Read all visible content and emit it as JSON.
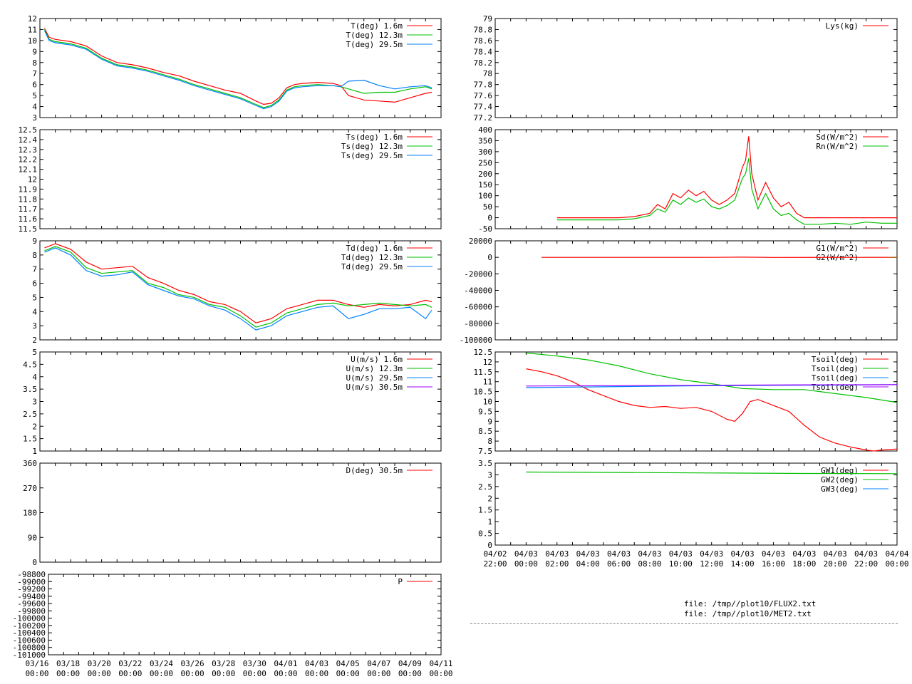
{
  "footer": {
    "line1": "file: /tmp//plot10/FLUX2.txt",
    "line2": "file: /tmp//plot10/MET2.txt"
  },
  "colors": {
    "red": "#ff0000",
    "green": "#00c000",
    "blue": "#0080ff",
    "purple": "#a000ff",
    "brown": "#a06000"
  },
  "chart_data": [
    {
      "id": "T",
      "type": "line",
      "xlim": [
        "03/16 00:00",
        "04/11 00:00"
      ],
      "ylim": [
        3,
        12
      ],
      "yticks": [
        "3",
        "4",
        "5",
        "6",
        "7",
        "8",
        "9",
        "10",
        "11",
        "12"
      ],
      "series": [
        {
          "name": "T(deg)  1.6m",
          "color": "red",
          "x": [
            0.3,
            0.6,
            1,
            2,
            3,
            4,
            5,
            6,
            7,
            8,
            9,
            10,
            11,
            12,
            13,
            14,
            14.5,
            15,
            15.5,
            16,
            16.5,
            17,
            18,
            19,
            19.5,
            20,
            21,
            22,
            23,
            24,
            25,
            25.4
          ],
          "y": [
            11.1,
            10.3,
            10.1,
            9.9,
            9.5,
            8.6,
            8.0,
            7.8,
            7.5,
            7.1,
            6.8,
            6.3,
            5.9,
            5.5,
            5.2,
            4.5,
            4.2,
            4.3,
            4.8,
            5.7,
            6.0,
            6.1,
            6.2,
            6.1,
            5.9,
            5.0,
            4.6,
            4.5,
            4.4,
            4.8,
            5.2,
            5.3
          ]
        },
        {
          "name": "T(deg) 12.3m",
          "color": "green",
          "x": [
            0.3,
            0.6,
            1,
            2,
            3,
            4,
            5,
            6,
            7,
            8,
            9,
            10,
            11,
            12,
            13,
            14,
            14.5,
            15,
            15.5,
            16,
            16.5,
            17,
            18,
            19,
            19.5,
            20,
            21,
            22,
            23,
            24,
            25,
            25.4
          ],
          "y": [
            11.0,
            10.1,
            9.9,
            9.7,
            9.3,
            8.4,
            7.8,
            7.6,
            7.3,
            6.9,
            6.5,
            6.0,
            5.6,
            5.2,
            4.8,
            4.2,
            3.9,
            4.1,
            4.6,
            5.5,
            5.8,
            5.9,
            6.0,
            5.9,
            5.8,
            5.6,
            5.2,
            5.3,
            5.3,
            5.6,
            5.8,
            5.6
          ]
        },
        {
          "name": "T(deg) 29.5m",
          "color": "blue",
          "x": [
            0.3,
            0.6,
            1,
            2,
            3,
            4,
            5,
            6,
            7,
            8,
            9,
            10,
            11,
            12,
            13,
            14,
            14.5,
            15,
            15.5,
            16,
            16.5,
            17,
            18,
            19,
            19.5,
            20,
            21,
            22,
            23,
            24,
            25,
            25.4
          ],
          "y": [
            10.9,
            10.0,
            9.8,
            9.6,
            9.2,
            8.3,
            7.7,
            7.5,
            7.2,
            6.8,
            6.4,
            5.9,
            5.5,
            5.1,
            4.7,
            4.1,
            3.8,
            4.0,
            4.5,
            5.4,
            5.7,
            5.8,
            5.9,
            5.9,
            5.8,
            6.3,
            6.4,
            5.9,
            5.6,
            5.8,
            5.9,
            5.7
          ]
        }
      ]
    },
    {
      "id": "Ts",
      "type": "line",
      "xlim": [
        "03/16 00:00",
        "04/11 00:00"
      ],
      "ylim": [
        11.5,
        12.5
      ],
      "yticks": [
        "11.5",
        "11.6",
        "11.7",
        "11.8",
        "11.9",
        "12",
        "12.1",
        "12.2",
        "12.3",
        "12.4",
        "12.5"
      ],
      "series": [
        {
          "name": "Ts(deg)  1.6m",
          "color": "red",
          "x": [],
          "y": []
        },
        {
          "name": "Ts(deg) 12.3m",
          "color": "green",
          "x": [],
          "y": []
        },
        {
          "name": "Ts(deg) 29.5m",
          "color": "blue",
          "x": [],
          "y": []
        }
      ]
    },
    {
      "id": "Td",
      "type": "line",
      "xlim": [
        "03/16 00:00",
        "04/11 00:00"
      ],
      "ylim": [
        2,
        9
      ],
      "yticks": [
        "2",
        "3",
        "4",
        "5",
        "6",
        "7",
        "8",
        "9"
      ],
      "series": [
        {
          "name": "Td(deg)  1.6m",
          "color": "red",
          "x": [
            0.3,
            1,
            2,
            3,
            4,
            5,
            6,
            7,
            8,
            9,
            10,
            11,
            12,
            13,
            14,
            15,
            16,
            17,
            18,
            19,
            20,
            21,
            22,
            23,
            24,
            25,
            25.4
          ],
          "y": [
            8.5,
            8.8,
            8.4,
            7.5,
            7.0,
            7.1,
            7.2,
            6.4,
            6.0,
            5.5,
            5.2,
            4.7,
            4.5,
            4.0,
            3.2,
            3.5,
            4.2,
            4.5,
            4.8,
            4.8,
            4.5,
            4.3,
            4.5,
            4.4,
            4.5,
            4.8,
            4.7
          ]
        },
        {
          "name": "Td(deg) 12.3m",
          "color": "green",
          "x": [
            0.3,
            1,
            2,
            3,
            4,
            5,
            6,
            7,
            8,
            9,
            10,
            11,
            12,
            13,
            14,
            15,
            16,
            17,
            18,
            19,
            20,
            21,
            22,
            23,
            24,
            25,
            25.4
          ],
          "y": [
            8.3,
            8.6,
            8.2,
            7.1,
            6.7,
            6.8,
            6.9,
            6.0,
            5.7,
            5.2,
            5.0,
            4.5,
            4.3,
            3.7,
            2.9,
            3.2,
            3.9,
            4.2,
            4.5,
            4.6,
            4.4,
            4.5,
            4.6,
            4.5,
            4.4,
            4.5,
            4.3
          ]
        },
        {
          "name": "Td(deg) 29.5m",
          "color": "blue",
          "x": [
            0.3,
            1,
            2,
            3,
            4,
            5,
            6,
            7,
            8,
            9,
            10,
            11,
            12,
            13,
            14,
            15,
            16,
            17,
            18,
            19,
            20,
            21,
            22,
            23,
            24,
            25,
            25.4
          ],
          "y": [
            8.2,
            8.5,
            8.0,
            6.9,
            6.5,
            6.6,
            6.8,
            5.9,
            5.5,
            5.1,
            4.9,
            4.4,
            4.1,
            3.5,
            2.7,
            3.0,
            3.7,
            4.0,
            4.3,
            4.4,
            3.5,
            3.8,
            4.2,
            4.2,
            4.3,
            3.5,
            4.1
          ]
        }
      ]
    },
    {
      "id": "U",
      "type": "line",
      "xlim": [
        "03/16 00:00",
        "04/11 00:00"
      ],
      "ylim": [
        1,
        5
      ],
      "yticks": [
        "1",
        "1.5",
        "2",
        "2.5",
        "3",
        "3.5",
        "4",
        "4.5",
        "5"
      ],
      "series": [
        {
          "name": "U(m/s)  1.6m",
          "color": "red",
          "x": [],
          "y": []
        },
        {
          "name": "U(m/s) 12.3m",
          "color": "green",
          "x": [],
          "y": []
        },
        {
          "name": "U(m/s) 29.5m",
          "color": "blue",
          "x": [],
          "y": []
        },
        {
          "name": "U(m/s) 30.5m",
          "color": "purple",
          "x": [],
          "y": []
        }
      ]
    },
    {
      "id": "D",
      "type": "line",
      "xlim": [
        "03/16 00:00",
        "04/11 00:00"
      ],
      "ylim": [
        0,
        360
      ],
      "yticks": [
        "0",
        "90",
        "180",
        "270",
        "360"
      ],
      "series": [
        {
          "name": "D(deg)  30.5m",
          "color": "red",
          "x": [],
          "y": []
        }
      ]
    },
    {
      "id": "P",
      "type": "line",
      "xlim": [
        "03/16 00:00",
        "04/11 00:00"
      ],
      "ylim": [
        -101000,
        -98800
      ],
      "yticks": [
        "-101000",
        "-100800",
        "-100600",
        "-100400",
        "-100200",
        "-100000",
        "-99800",
        "-99600",
        "-99400",
        "-99200",
        "-99000",
        "-98800"
      ],
      "xticks": [
        [
          "03/16",
          "00:00"
        ],
        [
          "03/18",
          "00:00"
        ],
        [
          "03/20",
          "00:00"
        ],
        [
          "03/22",
          "00:00"
        ],
        [
          "03/24",
          "00:00"
        ],
        [
          "03/26",
          "00:00"
        ],
        [
          "03/28",
          "00:00"
        ],
        [
          "03/30",
          "00:00"
        ],
        [
          "04/01",
          "00:00"
        ],
        [
          "04/03",
          "00:00"
        ],
        [
          "04/05",
          "00:00"
        ],
        [
          "04/07",
          "00:00"
        ],
        [
          "04/09",
          "00:00"
        ],
        [
          "04/11",
          "00:00"
        ]
      ],
      "series": [
        {
          "name": "P",
          "color": "red",
          "x": [],
          "y": []
        }
      ]
    },
    {
      "id": "Lys",
      "type": "line",
      "xlim": [
        "04/02 22:00",
        "04/04 00:00"
      ],
      "ylim": [
        77.2,
        79
      ],
      "yticks": [
        "77.2",
        "77.4",
        "77.6",
        "77.8",
        "78",
        "78.2",
        "78.4",
        "78.6",
        "78.8",
        "79"
      ],
      "series": [
        {
          "name": "Lys(kg)",
          "color": "red",
          "x": [],
          "y": []
        }
      ]
    },
    {
      "id": "Rad",
      "type": "line",
      "xlim": [
        "04/02 22:00",
        "04/04 00:00"
      ],
      "ylim": [
        -50,
        400
      ],
      "yticks": [
        "-50",
        "0",
        "50",
        "100",
        "150",
        "200",
        "250",
        "300",
        "350",
        "400"
      ],
      "series": [
        {
          "name": "Sd(W/m^2)",
          "color": "red",
          "x": [
            2,
            4,
            6,
            7,
            8,
            8.5,
            9,
            9.5,
            10,
            10.5,
            11,
            11.5,
            12,
            12.5,
            13,
            13.5,
            14,
            14.2,
            14.4,
            14.6,
            15,
            15.5,
            16,
            16.5,
            17,
            17.5,
            18,
            20,
            22,
            24
          ],
          "y": [
            0,
            0,
            0,
            5,
            20,
            60,
            40,
            110,
            90,
            125,
            100,
            120,
            80,
            60,
            80,
            110,
            230,
            260,
            370,
            200,
            80,
            160,
            90,
            50,
            70,
            20,
            0,
            0,
            0,
            0
          ]
        },
        {
          "name": "Rn(W/m^2)",
          "color": "green",
          "x": [
            2,
            4,
            6,
            7,
            8,
            8.5,
            9,
            9.5,
            10,
            10.5,
            11,
            11.5,
            12,
            12.5,
            13,
            13.5,
            14,
            14.2,
            14.4,
            14.6,
            15,
            15.5,
            16,
            16.5,
            17,
            17.5,
            18,
            19,
            20,
            21,
            22,
            23,
            24
          ],
          "y": [
            -10,
            -10,
            -10,
            -5,
            10,
            40,
            25,
            80,
            60,
            90,
            70,
            85,
            50,
            40,
            55,
            80,
            180,
            200,
            270,
            130,
            40,
            110,
            40,
            10,
            20,
            -10,
            -30,
            -30,
            -25,
            -30,
            -20,
            -25,
            -25
          ]
        }
      ]
    },
    {
      "id": "G",
      "type": "line",
      "xlim": [
        "04/02 22:00",
        "04/04 00:00"
      ],
      "ylim": [
        -100000,
        20000
      ],
      "yticks": [
        "-100000",
        "-80000",
        "-60000",
        "-40000",
        "-20000",
        "0",
        "20000"
      ],
      "series": [
        {
          "name": "G1(W/m^2)",
          "color": "red",
          "x": [
            1,
            6,
            12,
            14,
            16,
            20,
            24
          ],
          "y": [
            0,
            0,
            0,
            200,
            -100,
            0,
            0
          ]
        },
        {
          "name": "G2(W/m^2)",
          "color": "brown",
          "x": [
            23.5,
            24
          ],
          "y": [
            0,
            0
          ]
        }
      ]
    },
    {
      "id": "Tsoil",
      "type": "line",
      "xlim": [
        "04/02 22:00",
        "04/04 00:00"
      ],
      "ylim": [
        7.5,
        12.5
      ],
      "yticks": [
        "7.5",
        "8",
        "8.5",
        "9",
        "9.5",
        "10",
        "10.5",
        "11",
        "11.5",
        "12",
        "12.5"
      ],
      "series": [
        {
          "name": "Tsoil(deg)",
          "color": "red",
          "x": [
            0,
            1,
            2,
            3,
            4,
            5,
            6,
            7,
            8,
            9,
            10,
            11,
            12,
            13,
            13.5,
            14,
            14.5,
            15,
            16,
            17,
            18,
            19,
            20,
            21,
            22,
            22.5,
            23,
            24
          ],
          "y": [
            11.65,
            11.5,
            11.3,
            11.0,
            10.6,
            10.3,
            10.0,
            9.8,
            9.7,
            9.75,
            9.65,
            9.7,
            9.5,
            9.1,
            9.0,
            9.4,
            10.0,
            10.1,
            9.8,
            9.5,
            8.8,
            8.2,
            7.9,
            7.7,
            7.55,
            7.5,
            7.55,
            7.6
          ]
        },
        {
          "name": "Tsoil(deg)",
          "color": "green",
          "x": [
            0,
            2,
            4,
            6,
            8,
            10,
            12,
            14,
            16,
            18,
            20,
            22,
            24
          ],
          "y": [
            12.45,
            12.3,
            12.1,
            11.8,
            11.4,
            11.1,
            10.9,
            10.65,
            10.6,
            10.6,
            10.4,
            10.2,
            9.95
          ]
        },
        {
          "name": "Tsoil(deg)",
          "color": "blue",
          "x": [
            0,
            6,
            12,
            18,
            24
          ],
          "y": [
            10.7,
            10.75,
            10.8,
            10.82,
            10.85
          ]
        },
        {
          "name": "Tsoil(deg)",
          "color": "purple",
          "x": [
            0,
            6,
            12,
            18,
            24
          ],
          "y": [
            10.78,
            10.8,
            10.82,
            10.84,
            10.85
          ]
        }
      ]
    },
    {
      "id": "GW",
      "type": "line",
      "xlim": [
        "04/02 22:00",
        "04/04 00:00"
      ],
      "ylim": [
        0,
        3.5
      ],
      "yticks": [
        "0",
        "0.5",
        "1",
        "1.5",
        "2",
        "2.5",
        "3",
        "3.5"
      ],
      "xticks": [
        [
          "04/02",
          "22:00"
        ],
        [
          "04/03",
          "00:00"
        ],
        [
          "04/03",
          "02:00"
        ],
        [
          "04/03",
          "04:00"
        ],
        [
          "04/03",
          "06:00"
        ],
        [
          "04/03",
          "08:00"
        ],
        [
          "04/03",
          "10:00"
        ],
        [
          "04/03",
          "12:00"
        ],
        [
          "04/03",
          "14:00"
        ],
        [
          "04/03",
          "16:00"
        ],
        [
          "04/03",
          "18:00"
        ],
        [
          "04/03",
          "20:00"
        ],
        [
          "04/03",
          "22:00"
        ],
        [
          "04/04",
          "00:00"
        ]
      ],
      "series": [
        {
          "name": "GW1(deg)",
          "color": "red",
          "x": [],
          "y": []
        },
        {
          "name": "GW2(deg)",
          "color": "green",
          "x": [
            0,
            6,
            12,
            18,
            24
          ],
          "y": [
            3.12,
            3.1,
            3.08,
            3.06,
            3.05
          ]
        },
        {
          "name": "GW3(deg)",
          "color": "blue",
          "x": [],
          "y": []
        }
      ]
    }
  ]
}
